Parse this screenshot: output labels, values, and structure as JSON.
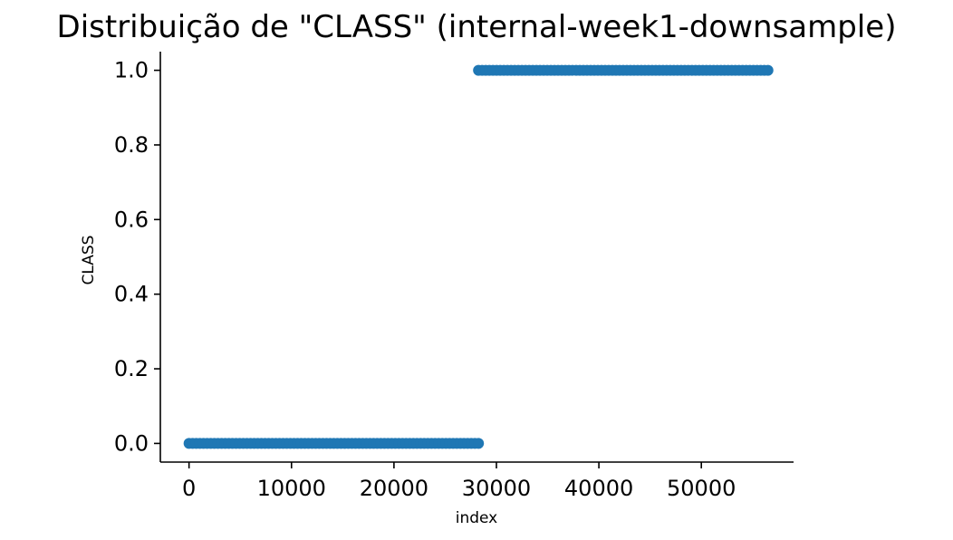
{
  "chart_data": {
    "type": "scatter",
    "title": "Distribuição de \"CLASS\" (internal-week1-downsample)",
    "xlabel": "index",
    "ylabel": "CLASS",
    "xlim": [
      -2800,
      59000
    ],
    "ylim": [
      -0.05,
      1.05
    ],
    "xticks": [
      0,
      10000,
      20000,
      30000,
      40000,
      50000
    ],
    "yticks": [
      0.0,
      0.2,
      0.4,
      0.6,
      0.8,
      1.0
    ],
    "ytick_labels": [
      "0.0",
      "0.2",
      "0.4",
      "0.6",
      "0.8",
      "1.0"
    ],
    "grid": false,
    "series_color": "#1f77b4",
    "series": [
      {
        "x_start": 0,
        "x_end": 28250,
        "y": 0
      },
      {
        "x_start": 28250,
        "x_end": 56500,
        "y": 1
      }
    ]
  }
}
